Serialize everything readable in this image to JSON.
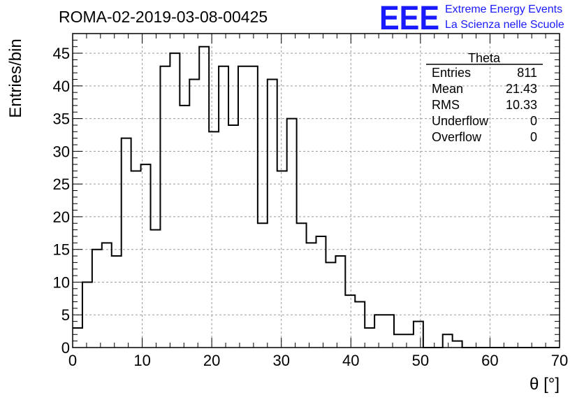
{
  "header": {
    "run_title": "ROMA-02-2019-03-08-00425"
  },
  "logo": {
    "mark": "EEE",
    "line1": "Extreme Energy Events",
    "line2": "La Scienza nelle Scuole",
    "color": "#1a1aff"
  },
  "stats_box": {
    "title": "Theta",
    "rows": [
      {
        "label": "Entries",
        "value": "811"
      },
      {
        "label": "Mean",
        "value": "21.43"
      },
      {
        "label": "RMS",
        "value": "10.33"
      },
      {
        "label": "Underflow",
        "value": "0"
      },
      {
        "label": "Overflow",
        "value": "0"
      }
    ]
  },
  "chart_data": {
    "type": "histogram",
    "title": "ROMA-02-2019-03-08-00425",
    "xlabel": "θ [°]",
    "ylabel": "Entries/bin",
    "xlim": [
      0,
      70
    ],
    "ylim": [
      0,
      48
    ],
    "x_ticks": [
      0,
      10,
      20,
      30,
      40,
      50,
      60,
      70
    ],
    "y_ticks": [
      0,
      5,
      10,
      15,
      20,
      25,
      30,
      35,
      40,
      45
    ],
    "grid": true,
    "bin_width": 1.4,
    "values": [
      3,
      10,
      15,
      16,
      14,
      32,
      27,
      28,
      18,
      43,
      45,
      37,
      41,
      46,
      33,
      43,
      34,
      43,
      43,
      19,
      41,
      27,
      35,
      19,
      16,
      17,
      13,
      14,
      8,
      7,
      3,
      5,
      5,
      2,
      2,
      4,
      0,
      0,
      2,
      1,
      0,
      0,
      0,
      0,
      0,
      0,
      0,
      0,
      0,
      0
    ],
    "line_color": "#000000"
  }
}
